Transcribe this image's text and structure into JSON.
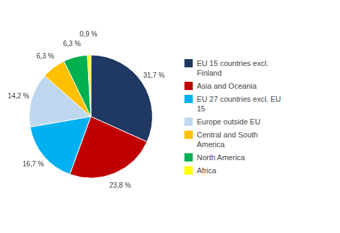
{
  "chart_data": {
    "type": "pie",
    "categories": [
      "EU 15 countries excl.\nFinland",
      "Asia and Oceania",
      "EU 27 countries excl. EU\n15",
      "Europe outside EU",
      "Central and South\nAmerica",
      "North America",
      "Africa"
    ],
    "values": [
      31.7,
      23.8,
      16.7,
      14.2,
      6.3,
      6.3,
      0.9
    ],
    "value_labels": [
      "31,7 %",
      "23,8 %",
      "16,7 %",
      "14,2 %",
      "6,3 %",
      "6,3 %",
      "0,9 %"
    ],
    "colors": [
      "#1F3864",
      "#C00000",
      "#00B0F0",
      "#BDD7EE",
      "#FFC000",
      "#00B050",
      "#FFFF00"
    ],
    "legend": "right",
    "data_labels": true
  }
}
